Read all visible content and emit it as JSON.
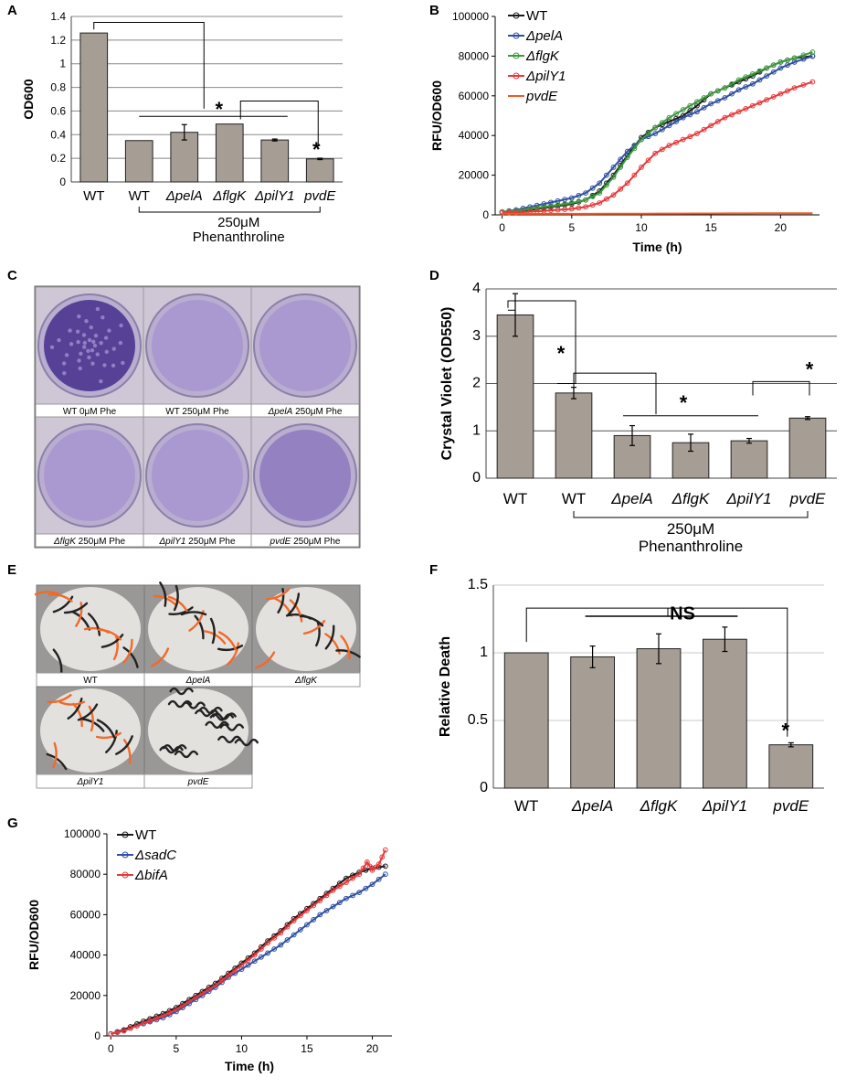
{
  "panels": {
    "A": "A",
    "B": "B",
    "C": "C",
    "D": "D",
    "E": "E",
    "F": "F",
    "G": "G"
  },
  "colors": {
    "bar": "#a69d94",
    "WT": "#1a1a1a",
    "pelA": "#2e4fa3",
    "flgK": "#3d9a3d",
    "pilY1": "#e8383a",
    "pvdE": "#f05a24",
    "sadC": "#2e4fa3",
    "bifA": "#e8383a",
    "plate_purple": "#6a55a8",
    "worm_orange": "#f06a2a"
  },
  "chart_data": [
    {
      "id": "A",
      "type": "bar",
      "ylabel": "OD600",
      "ylim": [
        0,
        1.4
      ],
      "yticks": [
        0,
        0.2,
        0.4,
        0.6,
        0.8,
        1,
        1.2,
        1.4
      ],
      "categories": [
        "WT",
        "WT",
        "ΔpelA",
        "ΔflgK",
        "ΔpilY1",
        "pvdE"
      ],
      "italic": [
        false,
        false,
        true,
        true,
        true,
        true
      ],
      "values": [
        1.26,
        0.35,
        0.42,
        0.49,
        0.355,
        0.195
      ],
      "errors": [
        0,
        0,
        0.065,
        0,
        0.008,
        0.006
      ],
      "group_label": [
        "250μM",
        "Phenanthroline"
      ],
      "significance": [
        "*",
        "*"
      ]
    },
    {
      "id": "B",
      "type": "line",
      "xlabel": "Time (h)",
      "ylabel": "RFU/OD600",
      "xlim": [
        -0.5,
        22.8
      ],
      "ylim": [
        0,
        100000
      ],
      "xticks": [
        0,
        5,
        10,
        15,
        20
      ],
      "yticks": [
        0,
        20000,
        40000,
        60000,
        80000,
        100000
      ],
      "legend": [
        "WT",
        "ΔpelA",
        "ΔflgK",
        "ΔpilY1",
        "pvdE"
      ],
      "legend_italic": [
        false,
        true,
        true,
        true,
        true
      ],
      "series": [
        {
          "name": "WT",
          "x": [
            0,
            1,
            2,
            3,
            4,
            5,
            6,
            7,
            8,
            9,
            10,
            11,
            12,
            13,
            14,
            15,
            16,
            17,
            18,
            19,
            20,
            21,
            22.3
          ],
          "values": [
            1500,
            1800,
            2500,
            3500,
            4500,
            5500,
            7500,
            12000,
            20000,
            30000,
            39000,
            44000,
            47000,
            50000,
            55000,
            61000,
            64000,
            67000,
            70000,
            74000,
            77000,
            79000,
            80000
          ]
        },
        {
          "name": "ΔpelA",
          "x": [
            0,
            1,
            2,
            3,
            4,
            5,
            6,
            7,
            8,
            9,
            10,
            11,
            12,
            13,
            14,
            15,
            16,
            17,
            18,
            19,
            20,
            21,
            22.3
          ],
          "values": [
            1500,
            2500,
            4000,
            5500,
            7000,
            8500,
            11000,
            16000,
            24000,
            32000,
            38000,
            41000,
            45000,
            49000,
            52000,
            56000,
            59000,
            63000,
            66000,
            70000,
            74000,
            77000,
            80000
          ]
        },
        {
          "name": "ΔflgK",
          "x": [
            0,
            1,
            2,
            3,
            4,
            5,
            6,
            7,
            8,
            9,
            10,
            11,
            12,
            13,
            14,
            15,
            16,
            17,
            18,
            19,
            20,
            21,
            22.3
          ],
          "values": [
            1500,
            2000,
            3000,
            4000,
            5000,
            6000,
            7500,
            11000,
            19000,
            29000,
            38000,
            44000,
            49000,
            53000,
            57000,
            61000,
            64000,
            68000,
            71000,
            74000,
            77000,
            79000,
            82000
          ]
        },
        {
          "name": "ΔpilY1",
          "x": [
            0,
            1,
            2,
            3,
            4,
            5,
            6,
            7,
            8,
            9,
            10,
            11,
            12,
            13,
            14,
            15,
            16,
            17,
            18,
            19,
            20,
            21,
            22.3
          ],
          "values": [
            1000,
            1200,
            1600,
            2000,
            2500,
            3000,
            4000,
            6000,
            10000,
            16000,
            24000,
            31000,
            35000,
            38000,
            41000,
            45000,
            49000,
            52000,
            55000,
            58000,
            61000,
            64000,
            67000
          ]
        },
        {
          "name": "pvdE",
          "x": [
            0,
            5,
            10,
            15,
            20,
            22.3
          ],
          "values": [
            500,
            500,
            600,
            700,
            800,
            800
          ]
        }
      ]
    },
    {
      "id": "D",
      "type": "bar",
      "ylabel": "Crystal Violet (OD550)",
      "ylim": [
        0,
        4
      ],
      "yticks": [
        0,
        1,
        2,
        3,
        4
      ],
      "categories": [
        "WT",
        "WT",
        "ΔpelA",
        "ΔflgK",
        "ΔpilY1",
        "pvdE"
      ],
      "italic": [
        false,
        false,
        true,
        true,
        true,
        true
      ],
      "values": [
        3.45,
        1.8,
        0.9,
        0.75,
        0.79,
        1.27
      ],
      "errors": [
        0.45,
        0.12,
        0.21,
        0.18,
        0.05,
        0.03
      ],
      "group_label": [
        "250μM",
        "Phenanthroline"
      ],
      "significance": [
        "*",
        "*",
        "*"
      ]
    },
    {
      "id": "F",
      "type": "bar",
      "ylabel": "Relative Death",
      "ylim": [
        0,
        1.5
      ],
      "yticks": [
        0,
        0.5,
        1,
        1.5
      ],
      "categories": [
        "WT",
        "ΔpelA",
        "ΔflgK",
        "ΔpilY1",
        "pvdE"
      ],
      "italic": [
        false,
        true,
        true,
        true,
        true
      ],
      "values": [
        1.0,
        0.97,
        1.03,
        1.1,
        0.32
      ],
      "errors": [
        0,
        0.08,
        0.11,
        0.09,
        0.015
      ],
      "significance": [
        "NS",
        "*"
      ]
    },
    {
      "id": "G",
      "type": "line",
      "xlabel": "Time (h)",
      "ylabel": "RFU/OD600",
      "xlim": [
        -0.3,
        21.5
      ],
      "ylim": [
        0,
        100000
      ],
      "xticks": [
        0,
        5,
        10,
        15,
        20
      ],
      "yticks": [
        0,
        20000,
        40000,
        60000,
        80000,
        100000
      ],
      "legend": [
        "WT",
        "ΔsadC",
        "ΔbifA"
      ],
      "legend_italic": [
        false,
        true,
        true
      ],
      "series": [
        {
          "name": "WT",
          "x": [
            0,
            1,
            2,
            3,
            4,
            5,
            6,
            7,
            8,
            9,
            10,
            11,
            12,
            13,
            14,
            15,
            16,
            17,
            18,
            19,
            20,
            21
          ],
          "values": [
            1000,
            3000,
            6000,
            8500,
            11000,
            14000,
            18000,
            22000,
            26000,
            31000,
            36000,
            41000,
            47000,
            52000,
            58000,
            63000,
            68000,
            73000,
            78000,
            81000,
            83000,
            84000
          ]
        },
        {
          "name": "ΔsadC",
          "x": [
            0,
            1,
            2,
            3,
            4,
            5,
            6,
            7,
            8,
            9,
            10,
            11,
            12,
            13,
            14,
            15,
            16,
            17,
            18,
            19,
            20,
            21
          ],
          "values": [
            1000,
            2500,
            5000,
            7000,
            9000,
            12000,
            16000,
            20000,
            24000,
            29000,
            33000,
            37000,
            41000,
            45000,
            50000,
            55000,
            60000,
            64000,
            68000,
            71000,
            75000,
            80000
          ]
        },
        {
          "name": "ΔbifA",
          "x": [
            0,
            1,
            2,
            3,
            4,
            5,
            6,
            7,
            8,
            9,
            10,
            11,
            12,
            13,
            14,
            15,
            16,
            17,
            18,
            19,
            19.6,
            20,
            20.5,
            21
          ],
          "values": [
            1000,
            2500,
            5000,
            7500,
            10000,
            13000,
            17000,
            21000,
            25000,
            30000,
            35000,
            40000,
            46000,
            51000,
            57000,
            62000,
            67000,
            72000,
            76000,
            80000,
            86000,
            82000,
            85000,
            92000
          ]
        }
      ]
    }
  ],
  "panelC": {
    "plates": [
      {
        "label": "WT 0μM Phe",
        "strain": "",
        "cond": "WT 0μM Phe",
        "stain": "heavy"
      },
      {
        "label": "WT 250μM Phe",
        "strain": "",
        "cond": "WT 250μM Phe",
        "stain": "light"
      },
      {
        "label": "ΔpelA 250μM Phe",
        "strain": "ΔpelA",
        "cond": " 250μM Phe",
        "stain": "light"
      },
      {
        "label": "ΔflgK 250μM Phe",
        "strain": "ΔflgK",
        "cond": " 250μM Phe",
        "stain": "light"
      },
      {
        "label": "ΔpilY1 250μM Phe",
        "strain": "ΔpilY1",
        "cond": " 250μM Phe",
        "stain": "light"
      },
      {
        "label": "pvdE 250μM Phe",
        "strain": "pvdE",
        "cond": " 250μM Phe",
        "stain": "medium"
      }
    ]
  },
  "panelE": {
    "wells": [
      {
        "label": "WT",
        "italic": false,
        "alive": true
      },
      {
        "label": "ΔpelA",
        "italic": true,
        "alive": true
      },
      {
        "label": "ΔflgK",
        "italic": true,
        "alive": true
      },
      {
        "label": "ΔpilY1",
        "italic": true,
        "alive": true
      },
      {
        "label": "pvdE",
        "italic": true,
        "alive": false
      }
    ]
  }
}
